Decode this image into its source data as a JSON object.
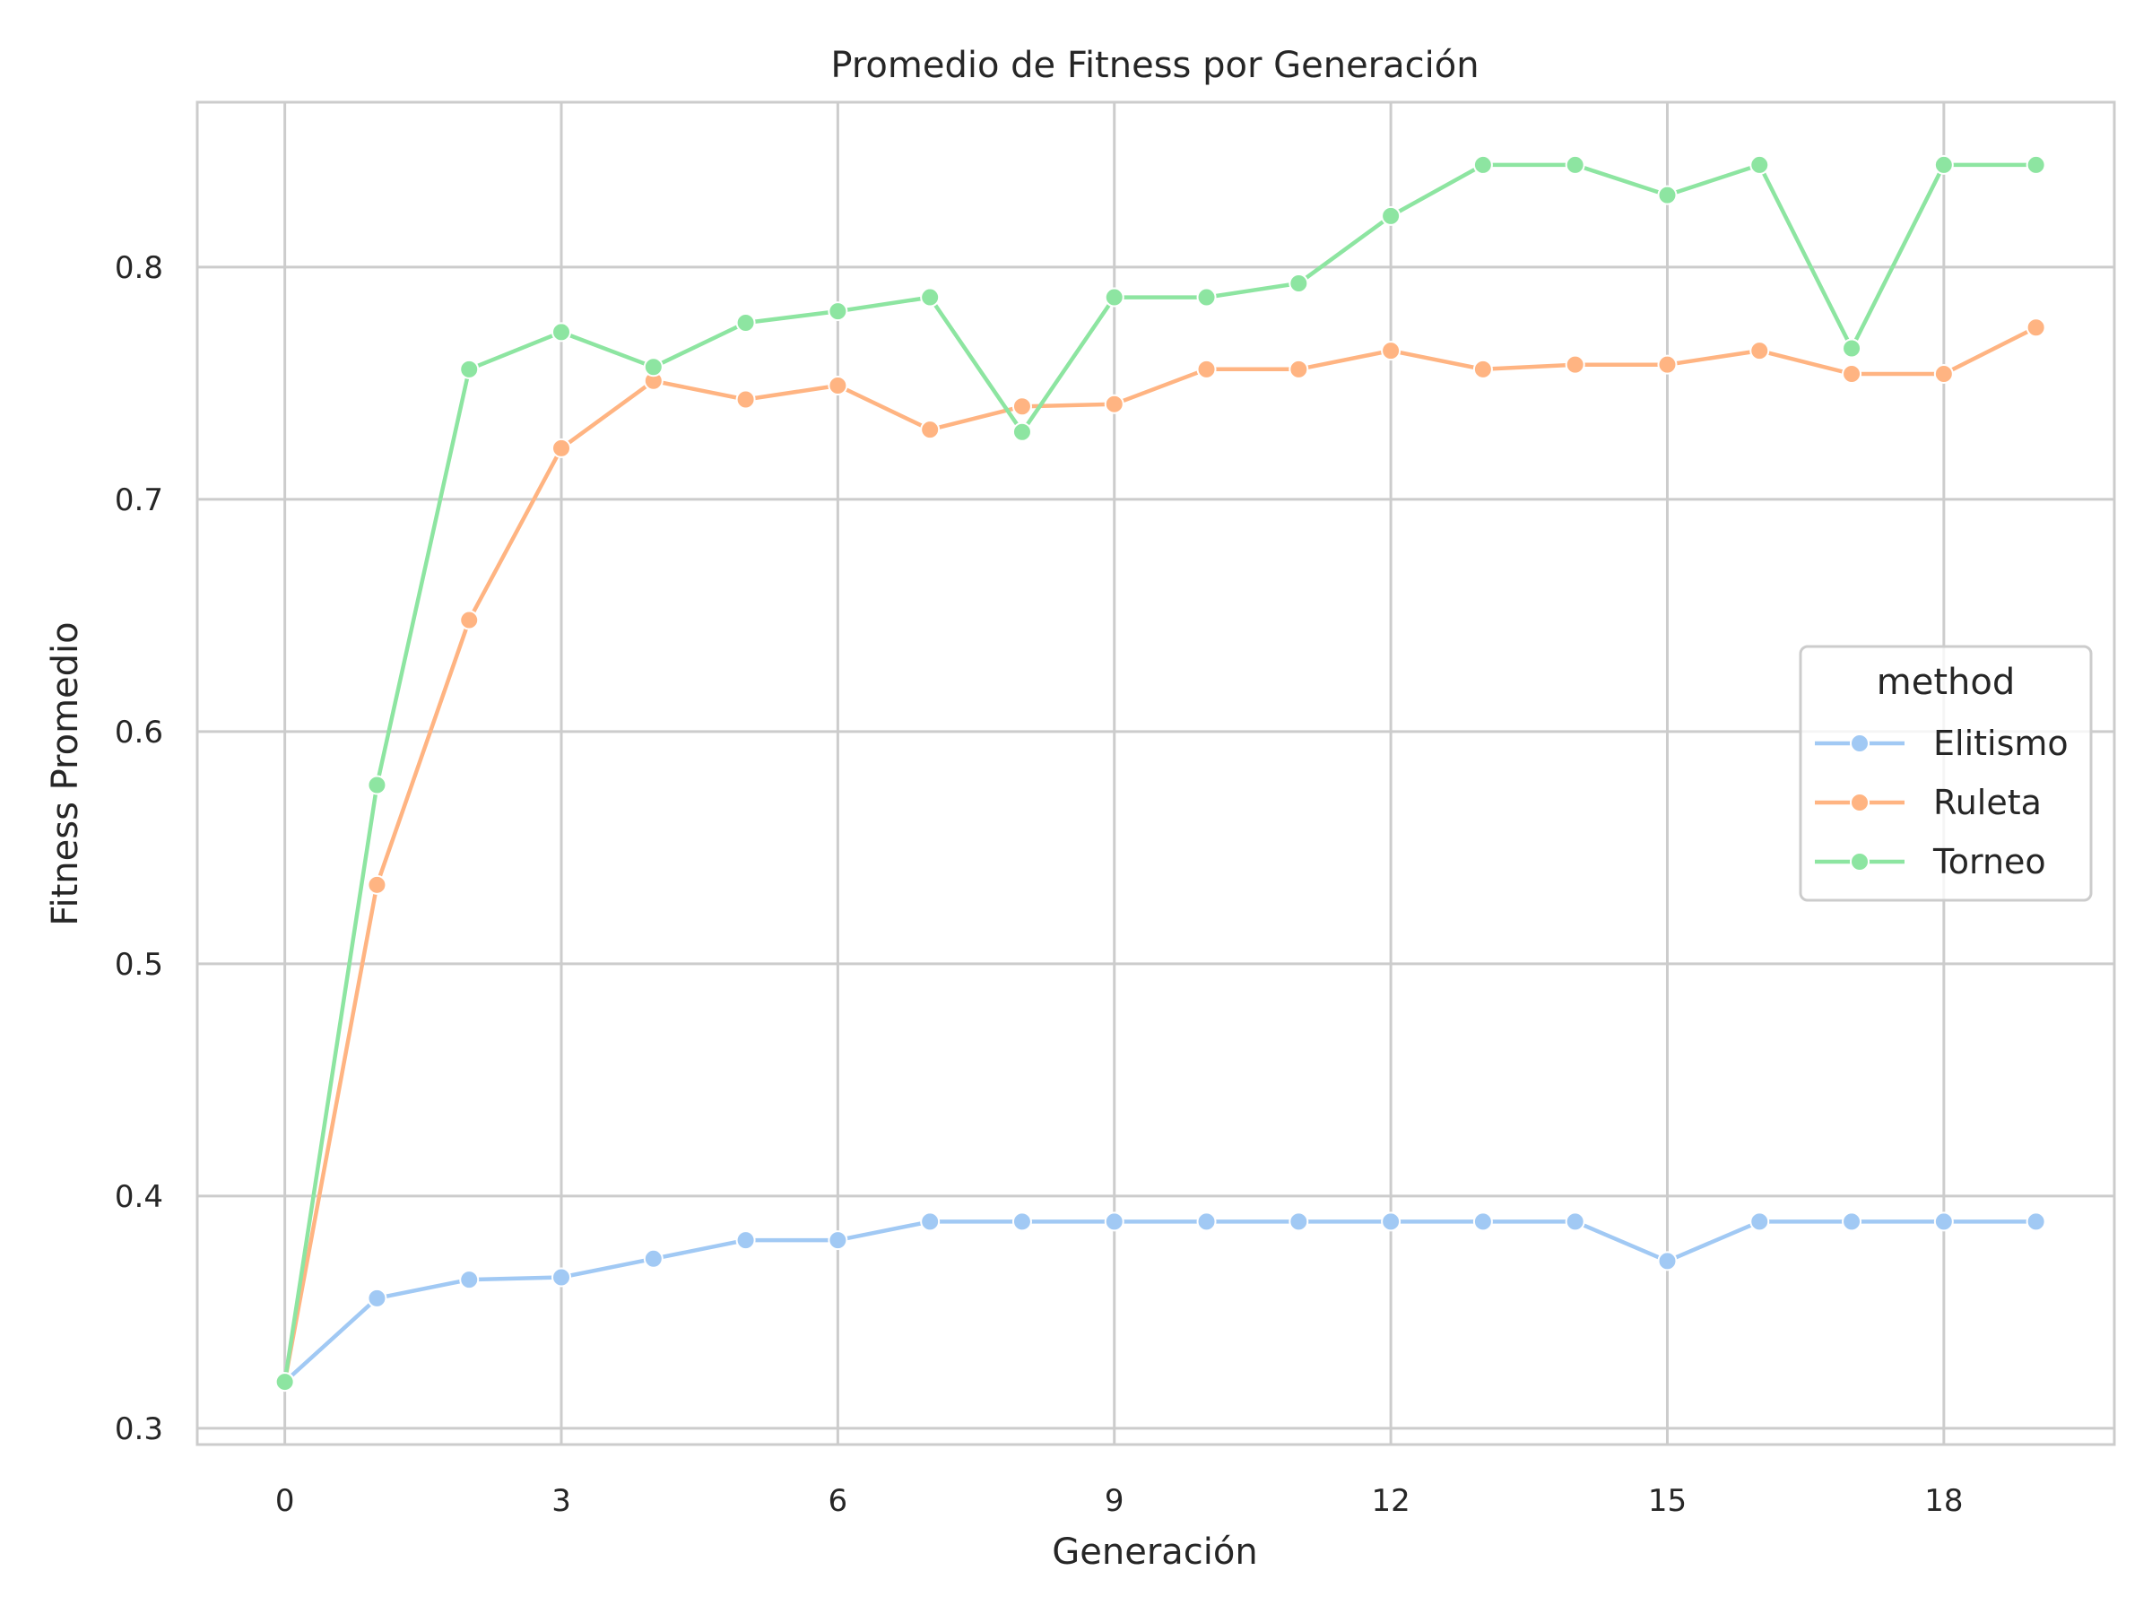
{
  "chart_data": {
    "type": "line",
    "title": "Promedio de Fitness por Generación",
    "xlabel": "Generación",
    "ylabel": "Fitness Promedio",
    "x": [
      0,
      1,
      2,
      3,
      4,
      5,
      6,
      7,
      8,
      9,
      10,
      11,
      12,
      13,
      14,
      15,
      16,
      17,
      18,
      19
    ],
    "xticks": [
      0,
      3,
      6,
      9,
      12,
      15,
      18
    ],
    "xtick_labels": [
      "0",
      "3",
      "6",
      "9",
      "12",
      "15",
      "18"
    ],
    "yticks": [
      0.3,
      0.4,
      0.5,
      0.6,
      0.7,
      0.8
    ],
    "ytick_labels": [
      "0.3",
      "0.4",
      "0.5",
      "0.6",
      "0.7",
      "0.8"
    ],
    "xlim": [
      -0.95,
      19.85
    ],
    "ylim": [
      0.293,
      0.871
    ],
    "grid": true,
    "legend": {
      "title": "method",
      "position": "center-right"
    },
    "series": [
      {
        "name": "Elitismo",
        "color": "#a1c9f4",
        "values": [
          0.32,
          0.356,
          0.364,
          0.365,
          0.373,
          0.381,
          0.381,
          0.389,
          0.389,
          0.389,
          0.389,
          0.389,
          0.389,
          0.389,
          0.389,
          0.372,
          0.389,
          0.389,
          0.389,
          0.389
        ]
      },
      {
        "name": "Ruleta",
        "color": "#ffb482",
        "values": [
          0.32,
          0.534,
          0.648,
          0.722,
          0.751,
          0.743,
          0.749,
          0.73,
          0.74,
          0.741,
          0.756,
          0.756,
          0.764,
          0.756,
          0.758,
          0.758,
          0.764,
          0.754,
          0.754,
          0.774
        ]
      },
      {
        "name": "Torneo",
        "color": "#8de5a1",
        "values": [
          0.32,
          0.577,
          0.756,
          0.772,
          0.757,
          0.776,
          0.781,
          0.787,
          0.729,
          0.787,
          0.787,
          0.793,
          0.822,
          0.844,
          0.844,
          0.831,
          0.844,
          0.765,
          0.844,
          0.844
        ]
      }
    ]
  }
}
